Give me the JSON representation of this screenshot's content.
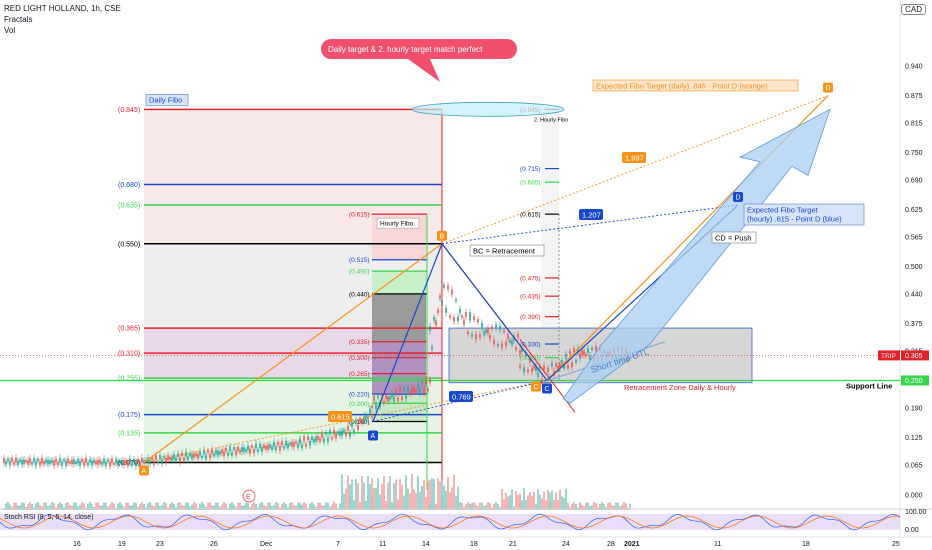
{
  "header": {
    "symbol_line": "RED LIGHT HOLLAND, 1h, CSE",
    "indicator_1": "Fractals",
    "indicator_2": "Vol",
    "currency": "CAD"
  },
  "colors": {
    "orange": "#f7931a",
    "blue": "#1848cc",
    "red": "#e0222a",
    "green": "#37d64a",
    "black": "#000000",
    "zone_gray": "#d6d6d6",
    "callout_pink": "#f0506e",
    "arrow_blue": "#aacdf0",
    "stoch_purple": "#dcc6f2"
  },
  "chart_data": {
    "type": "line",
    "title": "",
    "price_axis": {
      "ticks": [
        "0.940",
        "0.875",
        "0.815",
        "0.750",
        "0.690",
        "0.625",
        "0.565",
        "0.500",
        "0.440",
        "0.375",
        "0.315",
        "0.250",
        "0.190",
        "0.125",
        "0.065",
        "0.000"
      ],
      "last_price": "0.305",
      "support_value": "0.250",
      "symbol_tag": "TRIP"
    },
    "time_axis": {
      "ticks": [
        "16",
        "19",
        "23",
        "26",
        "Dec",
        "7",
        "11",
        "14",
        "18",
        "21",
        "24",
        "28",
        "2021",
        "11",
        "18",
        "25"
      ]
    },
    "daily_fibo": {
      "label": "Daily Fibo",
      "levels": [
        {
          "label": "(0.845)",
          "price": 0.845,
          "color": "red"
        },
        {
          "label": "(0.680)",
          "price": 0.68,
          "color": "blue"
        },
        {
          "label": "(0.635)",
          "price": 0.635,
          "color": "green"
        },
        {
          "label": "(0.550)",
          "price": 0.55,
          "color": "black"
        },
        {
          "label": "(0.365)",
          "price": 0.365,
          "color": "red"
        },
        {
          "label": "(0.310)",
          "price": 0.31,
          "color": "red"
        },
        {
          "label": "(0.255)",
          "price": 0.255,
          "color": "green"
        },
        {
          "label": "(0.175)",
          "price": 0.175,
          "color": "blue"
        },
        {
          "label": "(0.135)",
          "price": 0.135,
          "color": "green"
        },
        {
          "label": "(0.070)",
          "price": 0.07,
          "color": "black"
        }
      ]
    },
    "hourly_fibo": {
      "label": "Hourly Fibo",
      "levels": [
        {
          "label": "(0.615)",
          "price": 0.615,
          "color": "red"
        },
        {
          "label": "(0.515)",
          "price": 0.515,
          "color": "blue"
        },
        {
          "label": "(0.490)",
          "price": 0.49,
          "color": "green"
        },
        {
          "label": "(0.440)",
          "price": 0.44,
          "color": "black"
        },
        {
          "label": "(0.335)",
          "price": 0.335,
          "color": "red"
        },
        {
          "label": "(0.300)",
          "price": 0.3,
          "color": "red"
        },
        {
          "label": "(0.265)",
          "price": 0.265,
          "color": "red"
        },
        {
          "label": "(0.220)",
          "price": 0.22,
          "color": "blue"
        },
        {
          "label": "(0.200)",
          "price": 0.2,
          "color": "green"
        },
        {
          "label": "(0.160)",
          "price": 0.16,
          "color": "black"
        }
      ]
    },
    "right_fibo": {
      "label": "2. Hourly Fibo",
      "levels": [
        {
          "label": "(0.845)",
          "price": 0.845,
          "color": "red"
        },
        {
          "label": "(0.715)",
          "price": 0.715,
          "color": "blue"
        },
        {
          "label": "(0.685)",
          "price": 0.685,
          "color": "green"
        },
        {
          "label": "(0.615)",
          "price": 0.615,
          "color": "black"
        },
        {
          "label": "(0.475)",
          "price": 0.475,
          "color": "red"
        },
        {
          "label": "(0.435)",
          "price": 0.435,
          "color": "red"
        },
        {
          "label": "(0.390)",
          "price": 0.39,
          "color": "red"
        },
        {
          "label": "(0.330)",
          "price": 0.33,
          "color": "blue"
        },
        {
          "label": "(0.300)",
          "price": 0.3,
          "color": "green"
        }
      ]
    },
    "pattern_points": {
      "A": {
        "label": "A",
        "price": 0.07
      },
      "A2": {
        "label": "A",
        "price": 0.16
      },
      "B": {
        "label": "B",
        "price": 0.55
      },
      "C": {
        "label": "C",
        "price": 0.25
      },
      "D_orange": {
        "label": "D",
        "price": 0.875
      },
      "D_blue": {
        "label": "D",
        "price": 0.635
      }
    },
    "ratios": {
      "r1": "1.997",
      "r2": "1.207",
      "r3": "0.769",
      "r4": "0.615"
    },
    "annotations": {
      "callout": "Daily target & 2. hourly target match perfect",
      "bc": "BC = Retracement",
      "cd": "CD = Push",
      "expected_daily": "Expected Fibo Target (daily) .845 - Point D (orange)",
      "expected_hourly_1": "Expected Fibo Target",
      "expected_hourly_2": "(hourly) .615 - Point D (blue)",
      "short_time": "Short time UTL",
      "retracement_zone": "Retracement Zone Daily & Hourly",
      "support_line": "Support Line",
      "earnings_marker": "E"
    },
    "stoch": {
      "label": "Stoch RSI (8, 5, 5, 14, close)",
      "ticks": [
        "100.00",
        "0.00"
      ]
    }
  }
}
